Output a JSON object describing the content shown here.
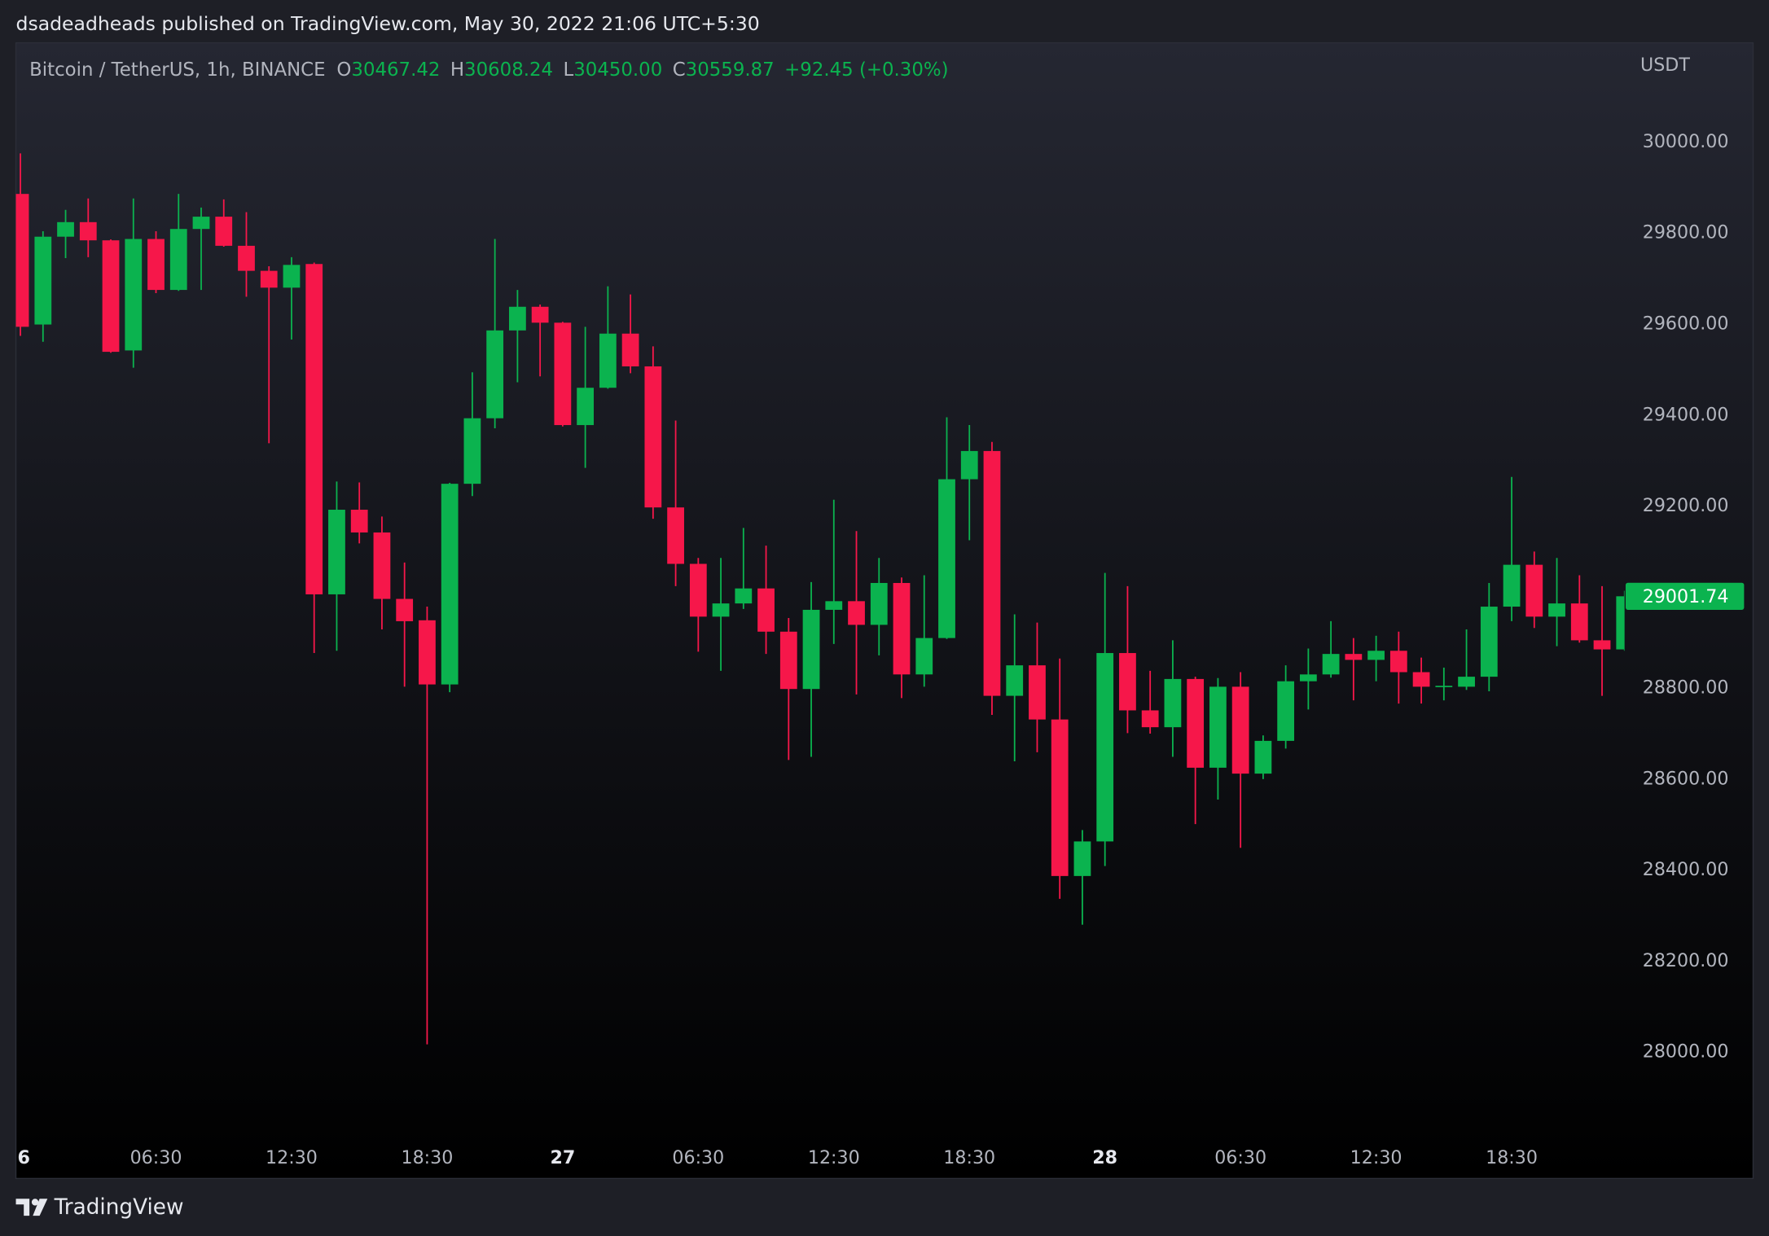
{
  "publisher": "dsadeadheads published on TradingView.com, May 30, 2022 21:06 UTC+5:30",
  "footer": "TradingView",
  "chart_data": {
    "type": "candlestick",
    "symbol": "Bitcoin / TetherUS, 1h, BINANCE",
    "ohlc_header": [
      {
        "key": "O",
        "text": "30467.42"
      },
      {
        "key": "H",
        "text": "30608.24"
      },
      {
        "key": "L",
        "text": "30450.00"
      },
      {
        "key": "C",
        "text": "30559.87"
      }
    ],
    "change": "+92.45 (+0.30%)",
    "currency": "USDT",
    "up_color": "#0bb34f",
    "down_color": "#f6174a",
    "grid": false,
    "categories": [
      "6",
      null,
      null,
      null,
      null,
      null,
      "06:30",
      null,
      null,
      null,
      null,
      null,
      "12:30",
      null,
      null,
      null,
      null,
      null,
      "18:30",
      null,
      null,
      null,
      null,
      null,
      "27",
      null,
      null,
      null,
      null,
      null,
      "06:30",
      null,
      null,
      null,
      null,
      null,
      "12:30",
      null,
      null,
      null,
      null,
      null,
      "18:30",
      null,
      null,
      null,
      null,
      null,
      "28",
      null,
      null,
      null,
      null,
      null,
      "06:30",
      null,
      null,
      null,
      null,
      null,
      "12:30",
      null,
      null,
      null,
      null,
      null,
      "18:30",
      null,
      null,
      null,
      null,
      null
    ],
    "open": [
      29886,
      29599,
      29792,
      29824,
      29784,
      29542,
      29787,
      29675,
      29809,
      29836,
      29772,
      29717,
      29680,
      29732,
      29006,
      29192,
      29142,
      28996,
      28949,
      28808,
      29249,
      29393,
      29586,
      29638,
      29603,
      29378,
      29460,
      29579,
      29507,
      29197,
      29073,
      28957,
      28986,
      29019,
      28924,
      28798,
      28972,
      28991,
      28939,
      29031,
      28830,
      28910,
      29259,
      29321,
      28783,
      28850,
      28731,
      28387,
      28463,
      28877,
      28751,
      28714,
      28820,
      28625,
      28803,
      28612,
      28684,
      28815,
      28830,
      28875,
      28862,
      28882,
      28835,
      28803,
      28803,
      28825,
      28979,
      29071,
      28957,
      28986,
      28905,
      28885
    ],
    "high": [
      29975,
      29804,
      29851,
      29876,
      29786,
      29876,
      29804,
      29886,
      29856,
      29874,
      29846,
      29727,
      29747,
      29735,
      29254,
      29252,
      29177,
      29076,
      28979,
      29251,
      29494,
      29787,
      29675,
      29643,
      29605,
      29594,
      29683,
      29665,
      29551,
      29388,
      29086,
      29086,
      29152,
      29113,
      28954,
      29033,
      29214,
      29145,
      29086,
      29043,
      29048,
      29395,
      29378,
      29341,
      28962,
      28944,
      28865,
      28488,
      29053,
      29024,
      28838,
      28905,
      28825,
      28822,
      28835,
      28696,
      28850,
      28887,
      28947,
      28910,
      28915,
      28924,
      28867,
      28845,
      28929,
      29031,
      29264,
      29100,
      29086,
      29048,
      29024,
      29014
    ],
    "low": [
      29574,
      29561,
      29745,
      29747,
      29537,
      29504,
      29668,
      29673,
      29675,
      29770,
      29660,
      29338,
      29566,
      28877,
      28882,
      29118,
      28929,
      28803,
      28017,
      28791,
      29222,
      29371,
      29472,
      29485,
      29375,
      29284,
      29458,
      29492,
      29172,
      29024,
      28880,
      28838,
      28974,
      28875,
      28642,
      28649,
      28897,
      28786,
      28872,
      28778,
      28803,
      28908,
      29125,
      28741,
      28639,
      28659,
      28337,
      28280,
      28409,
      28701,
      28700,
      28649,
      28501,
      28555,
      28449,
      28600,
      28667,
      28753,
      28823,
      28773,
      28815,
      28766,
      28766,
      28773,
      28796,
      28793,
      28947,
      28932,
      28892,
      28900,
      28783,
      28882
    ],
    "close": [
      29594,
      29792,
      29824,
      29784,
      29539,
      29787,
      29675,
      29809,
      29836,
      29772,
      29717,
      29680,
      29730,
      29006,
      29192,
      29142,
      28996,
      28947,
      28808,
      29249,
      29393,
      29586,
      29638,
      29603,
      29378,
      29460,
      29579,
      29507,
      29197,
      29073,
      28957,
      28986,
      29019,
      28924,
      28798,
      28972,
      28991,
      28939,
      29031,
      28830,
      28910,
      29259,
      29321,
      28783,
      28850,
      28731,
      28387,
      28463,
      28877,
      28751,
      28714,
      28820,
      28625,
      28803,
      28612,
      28684,
      28815,
      28830,
      28875,
      28862,
      28882,
      28835,
      28803,
      28805,
      28825,
      28979,
      29071,
      28957,
      28986,
      28905,
      28885,
      29001.74
    ],
    "ylim": [
      27809,
      30218
    ],
    "yticks": [
      {
        "value": 28000,
        "label": "28000.00"
      },
      {
        "value": 28200,
        "label": "28200.00"
      },
      {
        "value": 28400,
        "label": "28400.00"
      },
      {
        "value": 28600,
        "label": "28600.00"
      },
      {
        "value": 28800,
        "label": "28800.00"
      },
      {
        "value": 29000,
        "label": "29000.00"
      },
      {
        "value": 29200,
        "label": "29200.00"
      },
      {
        "value": 29400,
        "label": "29400.00"
      },
      {
        "value": 29600,
        "label": "29600.00"
      },
      {
        "value": 29800,
        "label": "29800.00"
      },
      {
        "value": 30000,
        "label": "30000.00"
      }
    ]
  }
}
